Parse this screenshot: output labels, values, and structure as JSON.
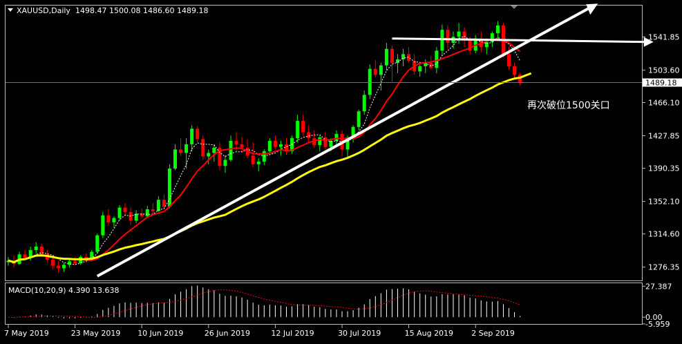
{
  "chart_data": {
    "type": "candlestick",
    "symbol_header": "XAUUSD,Daily",
    "ohlc_header": "1498.47 1500.08 1486.60 1489.18",
    "annotation": "再次破位1500关口",
    "current_price_label": "1489.18",
    "current_price": 1489.18,
    "price_ticks": [
      "1541.85",
      "1503.60",
      "1466.10",
      "1427.85",
      "1390.35",
      "1352.10",
      "1314.60",
      "1276.35"
    ],
    "price_tick_values": [
      1541.85,
      1503.6,
      1466.1,
      1427.85,
      1390.35,
      1352.1,
      1314.6,
      1276.35
    ],
    "price_range": [
      1261,
      1578
    ],
    "date_labels": [
      "7 May 2019",
      "23 May 2019",
      "10 Jun 2019",
      "26 Jun 2019",
      "12 Jul 2019",
      "30 Jul 2019",
      "15 Aug 2019",
      "2 Sep 2019"
    ],
    "date_label_index": [
      0,
      12,
      24,
      36,
      48,
      60,
      72,
      84
    ],
    "colors": {
      "bull": "#00ff00",
      "bear": "#ff0000",
      "ma_fast": "#ff0000",
      "ma_slow": "#ffff00",
      "trend": "#ffffff",
      "macd": "#ffffff",
      "signal": "#ff0000",
      "grid_text": "#ffffff"
    },
    "candles": [
      [
        1282,
        1288,
        1278,
        1284
      ],
      [
        1284,
        1290,
        1276,
        1280
      ],
      [
        1280,
        1294,
        1279,
        1291
      ],
      [
        1291,
        1296,
        1285,
        1287
      ],
      [
        1287,
        1300,
        1284,
        1296
      ],
      [
        1296,
        1305,
        1292,
        1300
      ],
      [
        1300,
        1303,
        1289,
        1291
      ],
      [
        1291,
        1296,
        1282,
        1285
      ],
      [
        1285,
        1288,
        1274,
        1278
      ],
      [
        1278,
        1283,
        1270,
        1275
      ],
      [
        1275,
        1281,
        1271,
        1279
      ],
      [
        1279,
        1285,
        1276,
        1283
      ],
      [
        1283,
        1288,
        1279,
        1281
      ],
      [
        1281,
        1290,
        1279,
        1288
      ],
      [
        1288,
        1292,
        1282,
        1285
      ],
      [
        1285,
        1296,
        1283,
        1294
      ],
      [
        1294,
        1315,
        1292,
        1313
      ],
      [
        1313,
        1340,
        1310,
        1336
      ],
      [
        1336,
        1343,
        1324,
        1328
      ],
      [
        1328,
        1335,
        1322,
        1333
      ],
      [
        1333,
        1348,
        1330,
        1345
      ],
      [
        1345,
        1350,
        1335,
        1340
      ],
      [
        1340,
        1345,
        1325,
        1330
      ],
      [
        1330,
        1342,
        1327,
        1338
      ],
      [
        1338,
        1344,
        1332,
        1335
      ],
      [
        1335,
        1347,
        1333,
        1343
      ],
      [
        1343,
        1350,
        1338,
        1341
      ],
      [
        1341,
        1358,
        1340,
        1354
      ],
      [
        1354,
        1360,
        1343,
        1346
      ],
      [
        1346,
        1395,
        1344,
        1390
      ],
      [
        1390,
        1418,
        1388,
        1412
      ],
      [
        1412,
        1425,
        1405,
        1408
      ],
      [
        1408,
        1425,
        1390,
        1418
      ],
      [
        1418,
        1440,
        1410,
        1436
      ],
      [
        1436,
        1439,
        1420,
        1424
      ],
      [
        1424,
        1428,
        1400,
        1404
      ],
      [
        1404,
        1412,
        1395,
        1408
      ],
      [
        1408,
        1418,
        1398,
        1414
      ],
      [
        1414,
        1420,
        1388,
        1393
      ],
      [
        1393,
        1405,
        1385,
        1400
      ],
      [
        1400,
        1428,
        1398,
        1422
      ],
      [
        1422,
        1432,
        1410,
        1418
      ],
      [
        1418,
        1426,
        1408,
        1414
      ],
      [
        1414,
        1424,
        1402,
        1405
      ],
      [
        1405,
        1420,
        1392,
        1395
      ],
      [
        1395,
        1402,
        1387,
        1398
      ],
      [
        1398,
        1412,
        1394,
        1410
      ],
      [
        1410,
        1425,
        1406,
        1422
      ],
      [
        1422,
        1428,
        1412,
        1415
      ],
      [
        1415,
        1422,
        1405,
        1418
      ],
      [
        1418,
        1425,
        1406,
        1410
      ],
      [
        1410,
        1428,
        1407,
        1425
      ],
      [
        1425,
        1452,
        1420,
        1445
      ],
      [
        1445,
        1452,
        1428,
        1432
      ],
      [
        1432,
        1440,
        1420,
        1425
      ],
      [
        1425,
        1434,
        1414,
        1417
      ],
      [
        1417,
        1428,
        1410,
        1426
      ],
      [
        1426,
        1432,
        1412,
        1415
      ],
      [
        1415,
        1425,
        1410,
        1422
      ],
      [
        1422,
        1434,
        1416,
        1430
      ],
      [
        1430,
        1434,
        1404,
        1412
      ],
      [
        1412,
        1428,
        1401,
        1426
      ],
      [
        1426,
        1440,
        1420,
        1438
      ],
      [
        1438,
        1458,
        1434,
        1456
      ],
      [
        1456,
        1480,
        1452,
        1475
      ],
      [
        1475,
        1510,
        1470,
        1505
      ],
      [
        1505,
        1515,
        1495,
        1498
      ],
      [
        1498,
        1512,
        1480,
        1509
      ],
      [
        1509,
        1535,
        1503,
        1528
      ],
      [
        1528,
        1532,
        1490,
        1512
      ],
      [
        1512,
        1522,
        1500,
        1516
      ],
      [
        1516,
        1528,
        1508,
        1522
      ],
      [
        1522,
        1530,
        1512,
        1514
      ],
      [
        1514,
        1522,
        1498,
        1502
      ],
      [
        1502,
        1510,
        1496,
        1508
      ],
      [
        1508,
        1516,
        1500,
        1512
      ],
      [
        1512,
        1520,
        1504,
        1506
      ],
      [
        1506,
        1530,
        1500,
        1526
      ],
      [
        1526,
        1556,
        1520,
        1550
      ],
      [
        1550,
        1555,
        1528,
        1535
      ],
      [
        1535,
        1548,
        1528,
        1542
      ],
      [
        1542,
        1558,
        1534,
        1548
      ],
      [
        1548,
        1553,
        1530,
        1538
      ],
      [
        1538,
        1542,
        1522,
        1526
      ],
      [
        1526,
        1544,
        1523,
        1540
      ],
      [
        1540,
        1548,
        1524,
        1530
      ],
      [
        1530,
        1540,
        1522,
        1536
      ],
      [
        1536,
        1548,
        1530,
        1546
      ],
      [
        1546,
        1560,
        1540,
        1555
      ],
      [
        1555,
        1558,
        1518,
        1522
      ],
      [
        1522,
        1530,
        1504,
        1508
      ],
      [
        1508,
        1512,
        1494,
        1498
      ],
      [
        1498,
        1500,
        1486,
        1489
      ]
    ],
    "macd_label": "MACD(10,20,9) 4.390 13.638",
    "macd_ticks": [
      "27.387",
      "0.00",
      "-5.959"
    ],
    "macd_tick_values": [
      27.387,
      0,
      -5.959
    ],
    "macd_range": [
      -6,
      30
    ]
  }
}
